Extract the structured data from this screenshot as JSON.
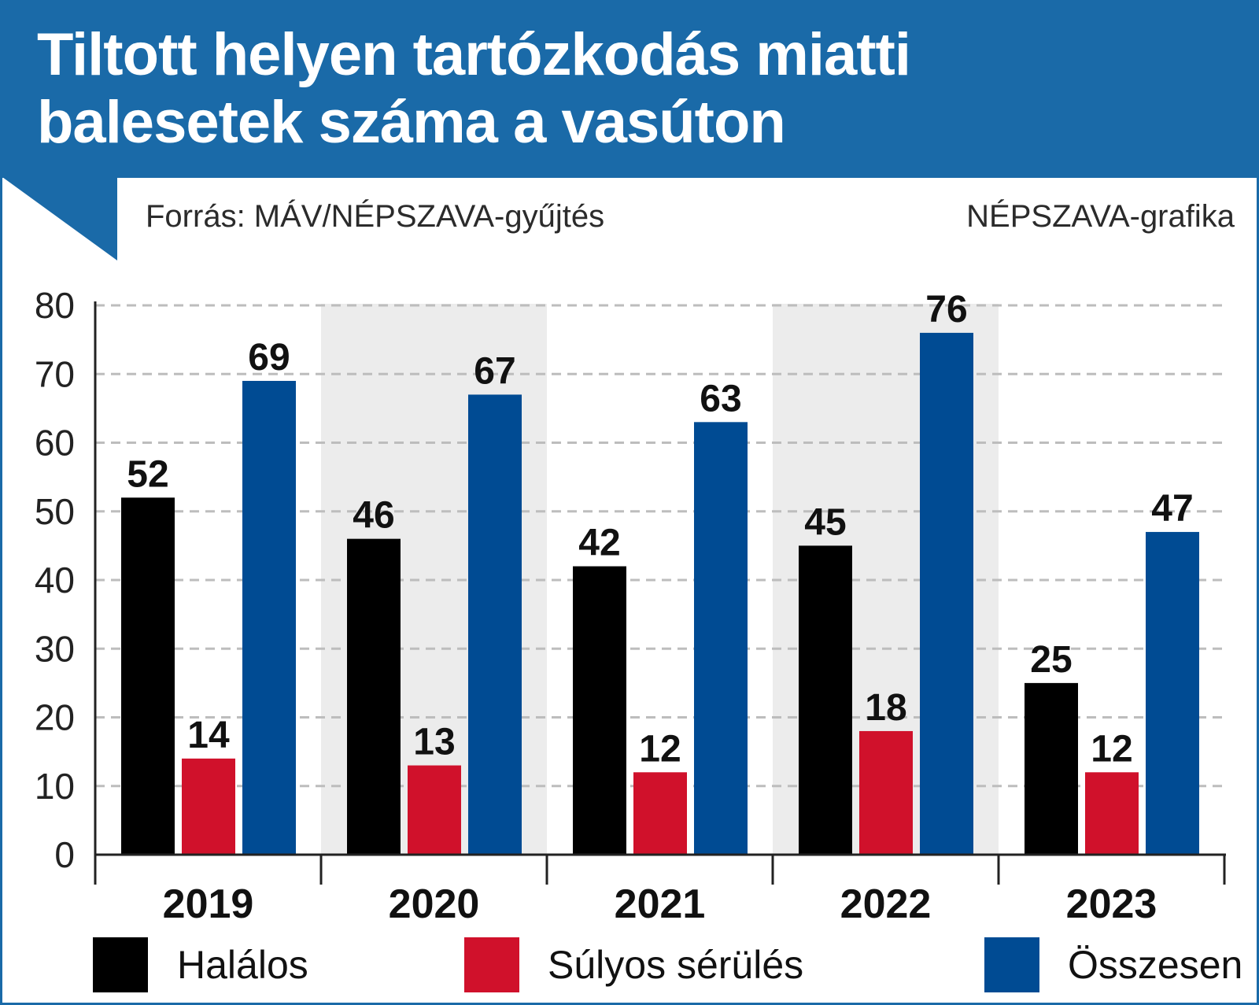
{
  "header": {
    "title_line1": "Tiltott helyen tartózkodás miatti",
    "title_line2": "balesetek száma a vasúton",
    "source": "Forrás: MÁV/NÉPSZAVA-gyűjtés",
    "credit": "NÉPSZAVA-grafika"
  },
  "colors": {
    "header": "#1a6aa8",
    "black_series": "#000000",
    "red_series": "#d0112b",
    "blue_series": "#004b93",
    "band": "#ececec",
    "grid": "#bdbdbd"
  },
  "legend": [
    {
      "label": "Halálos",
      "color": "#000000"
    },
    {
      "label": "Súlyos sérülés",
      "color": "#d0112b"
    },
    {
      "label": "Összesen",
      "color": "#004b93"
    }
  ],
  "chart_data": {
    "type": "bar",
    "categories": [
      "2019",
      "2020",
      "2021",
      "2022",
      "2023"
    ],
    "series": [
      {
        "name": "Halálos",
        "color": "#000000",
        "values": [
          52,
          46,
          42,
          45,
          25
        ]
      },
      {
        "name": "Súlyos sérülés",
        "color": "#d0112b",
        "values": [
          14,
          13,
          12,
          18,
          12
        ]
      },
      {
        "name": "Összesen",
        "color": "#004b93",
        "values": [
          69,
          67,
          63,
          76,
          47
        ]
      }
    ],
    "ylim": [
      0,
      80
    ],
    "yticks": [
      0,
      10,
      20,
      30,
      40,
      50,
      60,
      70,
      80
    ],
    "grid": "dashed horizontal",
    "shaded_categories": [
      "2020",
      "2022"
    ],
    "data_labels": true,
    "legend_position": "bottom"
  }
}
